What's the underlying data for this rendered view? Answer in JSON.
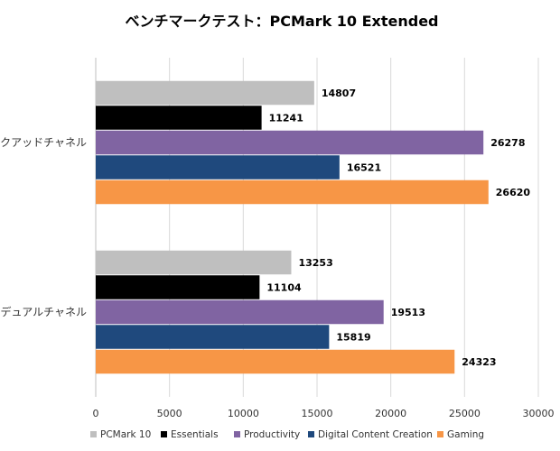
{
  "chart_data": {
    "type": "bar",
    "orientation": "horizontal",
    "title": "ベンチマークテスト：PCMark 10 Extended",
    "categories": [
      "クアッドチャネル",
      "デュアルチャネル"
    ],
    "series": [
      {
        "name": "PCMark 10",
        "color": "#bfbfbf",
        "values": [
          14807,
          13253
        ]
      },
      {
        "name": "Essentials",
        "color": "#000000",
        "values": [
          11241,
          11104
        ]
      },
      {
        "name": "Productivity",
        "color": "#8064a2",
        "values": [
          26278,
          19513
        ]
      },
      {
        "name": "Digital Content Creation",
        "color": "#1f497d",
        "values": [
          16521,
          15819
        ]
      },
      {
        "name": "Gaming",
        "color": "#f79646",
        "values": [
          26620,
          24323
        ]
      }
    ],
    "xlim": [
      0,
      30000
    ],
    "xticks": [
      0,
      5000,
      10000,
      15000,
      20000,
      25000,
      30000
    ],
    "grid": true,
    "legend_position": "bottom"
  }
}
